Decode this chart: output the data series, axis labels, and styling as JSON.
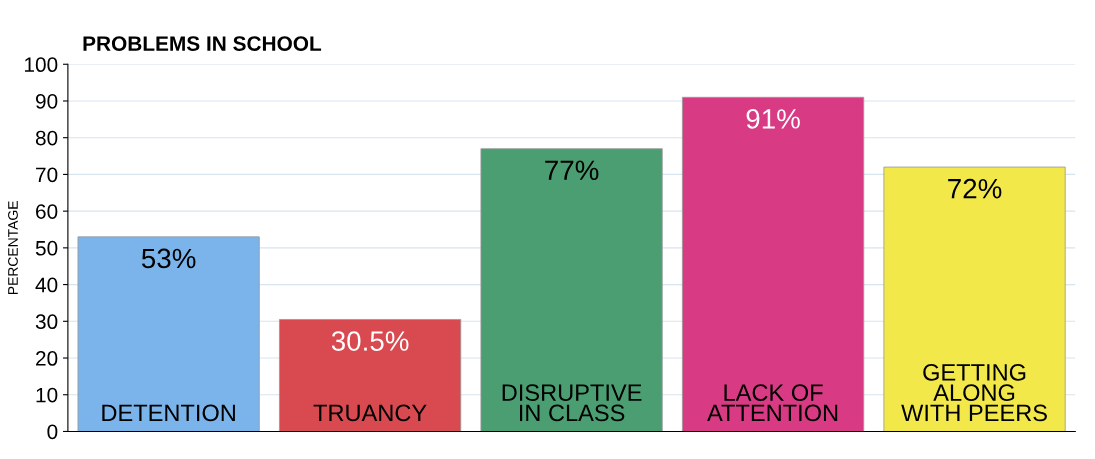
{
  "chart_data": {
    "type": "bar",
    "title": "PROBLEMS IN SCHOOL",
    "ylabel": "PERCENTAGE",
    "categories": [
      "DETENTION",
      "TRUANCY",
      "DISRUPTIVE\nIN CLASS",
      "LACK OF\nATTENTION",
      "GETTING\nALONG\nWITH PEERS"
    ],
    "values": [
      53,
      30.5,
      77,
      91,
      72
    ],
    "value_labels": [
      "53%",
      "30.5%",
      "77%",
      "91%",
      "72%"
    ],
    "colors": [
      "#7ab4ea",
      "#d84a50",
      "#4a9e72",
      "#d83a84",
      "#f2e84a"
    ],
    "ylim": [
      0,
      100
    ],
    "yticks": [
      0,
      10,
      20,
      30,
      40,
      50,
      60,
      70,
      80,
      90,
      100
    ],
    "grid": "y"
  }
}
